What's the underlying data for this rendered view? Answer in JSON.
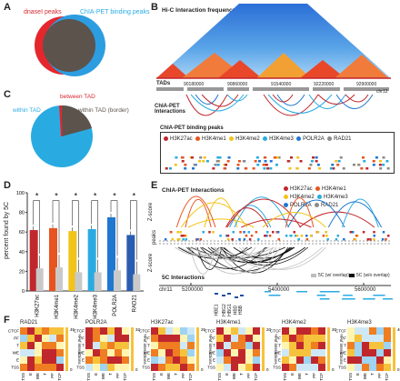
{
  "panels": {
    "A": {
      "letter": "A",
      "dnase_label": "dnaseI peaks",
      "chiapet_label": "ChIA-PET binding peaks"
    },
    "B": {
      "letter": "B",
      "hic_label": "Hi-C Interaction frequency",
      "tads_label": "TADs",
      "chr": "chr12",
      "positions": [
        "90180000",
        "90860000",
        "91540000",
        "92220000",
        "92900000"
      ],
      "chiapet_interactions_label": "ChIA-PET Interactions",
      "binding_peaks_label": "ChIA-PET binding peaks",
      "legend": [
        {
          "name": "H3K27ac",
          "color": "#c0272d"
        },
        {
          "name": "H3K4me1",
          "color": "#e8541f"
        },
        {
          "name": "H3K4me2",
          "color": "#f2c318"
        },
        {
          "name": "H3K4me3",
          "color": "#29abe2"
        },
        {
          "name": "POLR2A",
          "color": "#1f77d0"
        },
        {
          "name": "RAD21",
          "color": "#8a8a8a"
        }
      ]
    },
    "C": {
      "letter": "C",
      "between": "between TAD",
      "within": "within TAD",
      "border": "within TAD (border)"
    },
    "D": {
      "letter": "D",
      "ylabel": "percent found by 5C"
    },
    "E": {
      "letter": "E",
      "chiapet_label": "ChIA-PET Interactions",
      "peaks_label": "peaks",
      "zscore_label": "Z-score",
      "fivec_label": "5C Interactions",
      "legend_5c_wo": "5C (w/ overlap)",
      "legend_5c_no": "5C (w/o overlap)",
      "chr": "chr11",
      "positions": [
        "5200000",
        "5400000",
        "5600000"
      ],
      "genes": [
        "HBE1",
        "HBG2",
        "HBG1",
        "HBD",
        "HBB"
      ],
      "legend": [
        {
          "name": "H3K27ac",
          "color": "#c0272d"
        },
        {
          "name": "H3K4me1",
          "color": "#e8541f"
        },
        {
          "name": "H3K4me2",
          "color": "#f2c318"
        },
        {
          "name": "H3K4me3",
          "color": "#29abe2"
        },
        {
          "name": "POLR2A",
          "color": "#1f77d0"
        },
        {
          "name": "RAD21",
          "color": "#8a8a8a"
        }
      ]
    },
    "F": {
      "letter": "F",
      "titles": [
        "RAD21",
        "POLR2A",
        "H3K27ac",
        "H3K4me1",
        "H3K4me2",
        "H3K4me3"
      ],
      "row_labels": [
        "CTCF",
        "PF",
        "T",
        "WE",
        "E",
        "TSS"
      ],
      "col_labels": [
        "TSS",
        "E",
        "WE",
        "T",
        "PF",
        "CTCF"
      ],
      "axis_label": "% of interactions",
      "scale_maxes": [
        "45",
        "32",
        "25",
        "20",
        "30",
        "40"
      ]
    }
  },
  "chart_data": [
    {
      "type": "pie",
      "title": "",
      "labels": [
        "dnaseI peaks",
        "ChIA-PET binding peaks"
      ],
      "note": "Venn-style overlap"
    },
    {
      "type": "pie",
      "labels": [
        "within TAD",
        "between TAD",
        "within TAD (border)"
      ],
      "values": [
        74,
        4,
        22
      ]
    },
    {
      "type": "bar",
      "title": "",
      "ylabel": "percent found by 5C",
      "ylim": [
        0,
        100
      ],
      "categories": [
        "H3K27ac",
        "H3K4me1",
        "H3K4me2",
        "H3K4me3",
        "POLR2A",
        "RAD21"
      ],
      "series": [
        {
          "values": [
            62,
            64,
            61,
            63,
            75,
            57
          ]
        },
        {
          "values": [
            23,
            24,
            19,
            19,
            21,
            17
          ]
        }
      ],
      "colors": [
        "#c0272d",
        "#e8541f",
        "#f2c318",
        "#29abe2",
        "#1f77d0",
        "#2a5db0"
      ]
    }
  ]
}
